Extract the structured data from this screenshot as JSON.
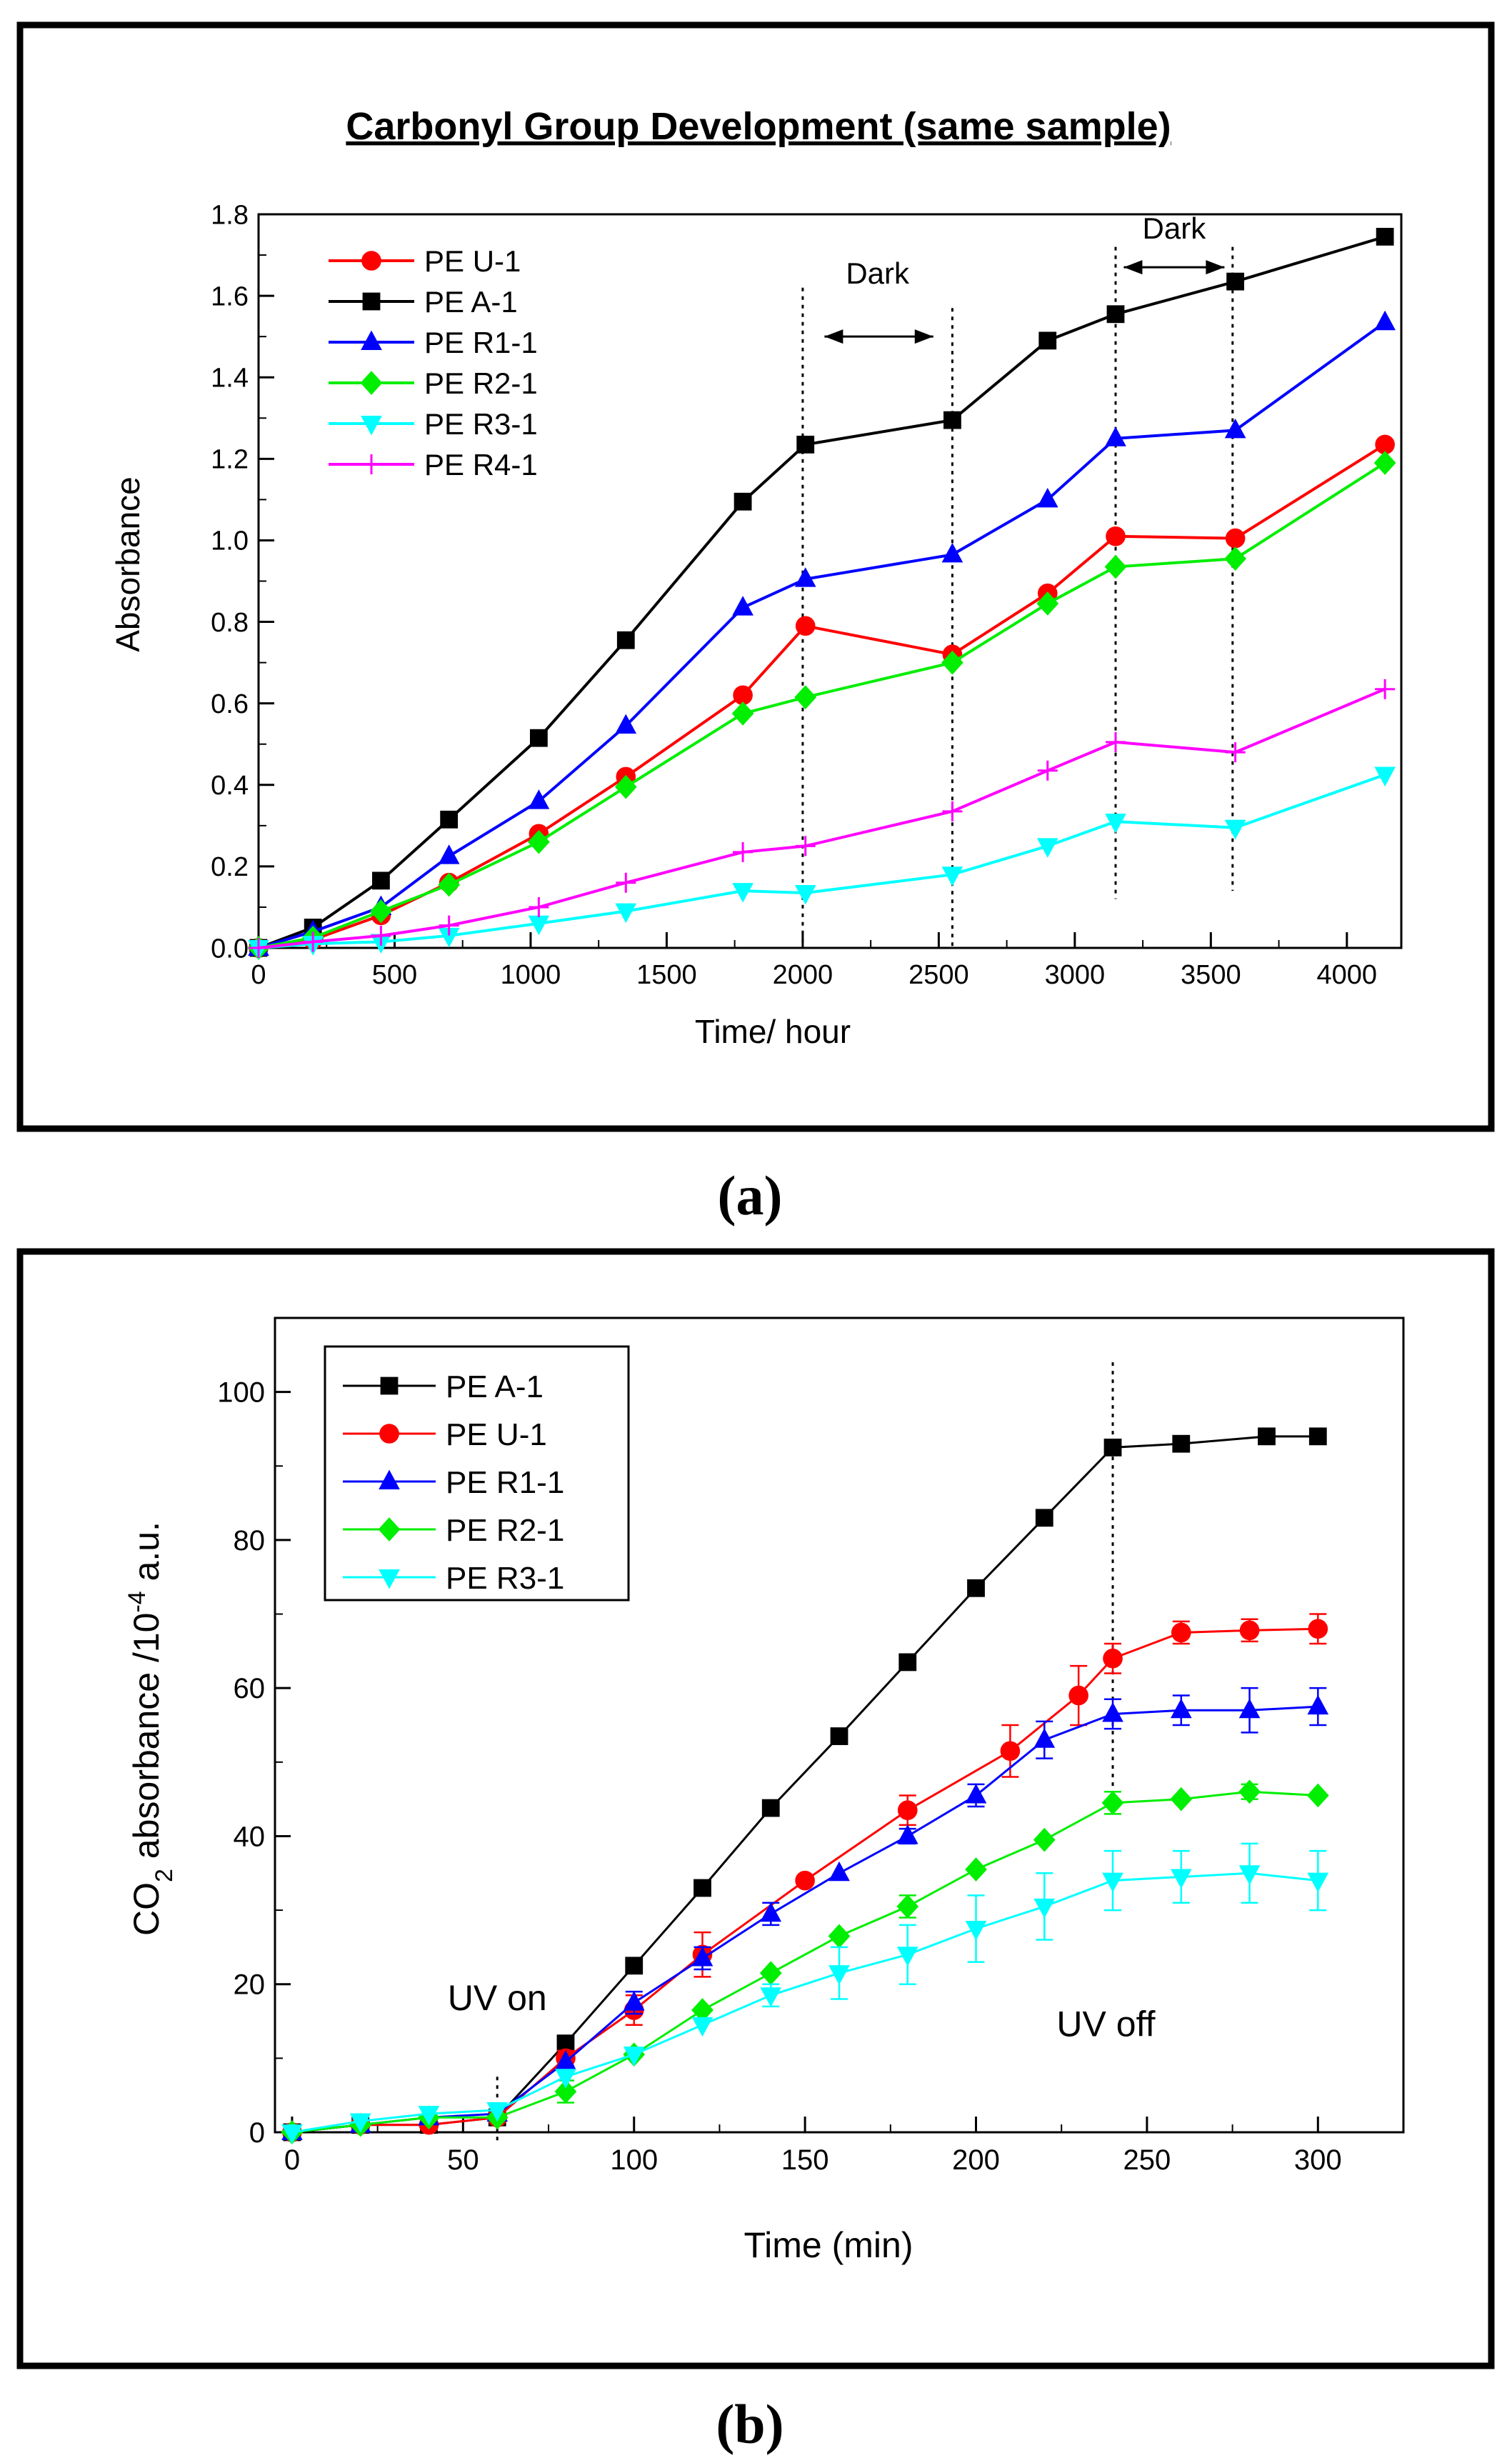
{
  "panel_labels": {
    "a": "(a)",
    "b": "(b)"
  },
  "chart_data": [
    {
      "type": "line",
      "id": "a",
      "title": "Carbonyl Group Development (same sample)",
      "xlabel": "Time/ hour",
      "ylabel": "Absorbance",
      "xlim": [
        0,
        4200
      ],
      "ylim": [
        0,
        1.8
      ],
      "xticks": [
        0,
        500,
        1000,
        1500,
        2000,
        2500,
        3000,
        3500,
        4000
      ],
      "yticks": [
        0.0,
        0.2,
        0.4,
        0.6,
        0.8,
        1.0,
        1.2,
        1.4,
        1.6,
        1.8
      ],
      "ytick_labels": [
        "0.0",
        "0.2",
        "0.4",
        "0.6",
        "0.8",
        "1.0",
        "1.2",
        "1.4",
        "1.6",
        "1.8"
      ],
      "x": [
        0,
        200,
        450,
        700,
        1030,
        1350,
        1780,
        2010,
        2550,
        2900,
        3150,
        3590,
        4140
      ],
      "legend_position": "top-left",
      "series": [
        {
          "name": "PE U-1",
          "color": "#ff0000",
          "marker": "circle",
          "values": [
            0,
            0.02,
            0.08,
            0.16,
            0.28,
            0.42,
            0.62,
            0.79,
            0.72,
            0.87,
            1.01,
            1.005,
            1.235
          ]
        },
        {
          "name": "PE A-1",
          "color": "#000000",
          "marker": "square",
          "values": [
            0,
            0.05,
            0.165,
            0.315,
            0.515,
            0.755,
            1.095,
            1.235,
            1.295,
            1.49,
            1.555,
            1.635,
            1.745
          ]
        },
        {
          "name": "PE R1-1",
          "color": "#0000ff",
          "marker": "triangle-up",
          "values": [
            0,
            0.04,
            0.1,
            0.225,
            0.36,
            0.545,
            0.835,
            0.905,
            0.965,
            1.1,
            1.25,
            1.27,
            1.535
          ]
        },
        {
          "name": "PE R2-1",
          "color": "#00ee00",
          "marker": "diamond",
          "values": [
            0,
            0.025,
            0.09,
            0.155,
            0.26,
            0.395,
            0.575,
            0.615,
            0.7,
            0.845,
            0.935,
            0.955,
            1.19
          ]
        },
        {
          "name": "PE R3-1",
          "color": "#00ffff",
          "marker": "triangle-down",
          "values": [
            0,
            0.01,
            0.015,
            0.03,
            0.06,
            0.09,
            0.14,
            0.135,
            0.18,
            0.25,
            0.31,
            0.295,
            0.425
          ]
        },
        {
          "name": "PE R4-1",
          "color": "#ff00ff",
          "marker": "plus",
          "values": [
            0,
            0.015,
            0.03,
            0.055,
            0.1,
            0.16,
            0.235,
            0.25,
            0.335,
            0.435,
            0.505,
            0.48,
            0.635
          ]
        }
      ],
      "reference_lines": [
        {
          "x": 2000,
          "y_top": 1.62,
          "y_bottom": 0
        },
        {
          "x": 2550,
          "y_top": 1.57,
          "y_bottom": 0
        },
        {
          "x": 3150,
          "y_top": 1.72,
          "y_bottom": 0.12
        },
        {
          "x": 3580,
          "y_top": 1.72,
          "y_bottom": 0.14
        }
      ],
      "annotations": [
        {
          "text": "Dark",
          "x": 2275,
          "y": 1.63,
          "arrow_from": 2080,
          "arrow_to": 2480,
          "arrow_y": 1.5
        },
        {
          "text": "Dark",
          "x": 3365,
          "y": 1.74,
          "arrow_from": 3180,
          "arrow_to": 3550,
          "arrow_y": 1.67
        }
      ]
    },
    {
      "type": "line",
      "id": "b",
      "title": "",
      "xlabel": "Time (min)",
      "ylabel_main": "CO",
      "ylabel_sub": "2",
      "ylabel_mid": " absorbance /10",
      "ylabel_sup": "-4",
      "ylabel_end": " a.u.",
      "xlim": [
        -5,
        325
      ],
      "ylim": [
        0,
        110
      ],
      "xticks": [
        0,
        50,
        100,
        150,
        200,
        250,
        300
      ],
      "yticks": [
        0,
        20,
        40,
        60,
        80,
        100
      ],
      "legend_position": "top-left",
      "series": [
        {
          "name": "PE A-1",
          "color": "#000000",
          "marker": "square",
          "x": [
            0,
            20,
            40,
            60,
            80,
            100,
            120,
            140,
            160,
            180,
            200,
            220,
            240,
            260,
            285,
            300
          ],
          "values": [
            0,
            1,
            1,
            2,
            12,
            22.5,
            33,
            43.8,
            53.5,
            63.5,
            73.5,
            83,
            92.5,
            93,
            94,
            94
          ],
          "errors": []
        },
        {
          "name": "PE U-1",
          "color": "#ff0000",
          "marker": "circle",
          "x": [
            0,
            20,
            40,
            60,
            80,
            100,
            120,
            150,
            180,
            210,
            230,
            240,
            260,
            280,
            300
          ],
          "values": [
            0,
            1,
            1,
            2,
            10,
            16.5,
            24,
            34,
            43.5,
            51.5,
            59,
            64,
            67.5,
            67.8,
            68
          ],
          "errors": [
            0,
            0,
            0,
            0,
            1,
            2,
            3,
            0,
            2,
            3.5,
            4,
            2,
            1.5,
            1.5,
            2
          ]
        },
        {
          "name": "PE R1-1",
          "color": "#0000ff",
          "marker": "triangle-up",
          "x": [
            0,
            20,
            40,
            60,
            80,
            100,
            120,
            140,
            160,
            180,
            200,
            220,
            240,
            260,
            280,
            300
          ],
          "values": [
            0,
            1,
            2,
            2.5,
            9.5,
            17.5,
            23.5,
            29.5,
            35,
            40,
            45.5,
            53,
            56.5,
            57,
            57,
            57.5
          ],
          "errors": [
            0,
            0,
            0,
            0,
            0,
            1.5,
            1.5,
            1.5,
            0,
            1,
            1.5,
            2.5,
            2,
            2,
            3,
            2.5
          ]
        },
        {
          "name": "PE R2-1",
          "color": "#00ee00",
          "marker": "diamond",
          "x": [
            0,
            20,
            40,
            60,
            80,
            100,
            120,
            140,
            160,
            180,
            200,
            220,
            240,
            260,
            280,
            300
          ],
          "values": [
            0,
            1,
            2,
            2,
            5.5,
            10.5,
            16.5,
            21.5,
            26.5,
            30.5,
            35.5,
            39.5,
            44.5,
            45,
            46,
            45.5
          ],
          "errors": [
            0,
            0,
            0,
            0,
            1.5,
            0,
            0,
            0,
            0,
            1.5,
            0,
            0,
            1.5,
            0,
            1,
            0
          ]
        },
        {
          "name": "PE R3-1",
          "color": "#00ffff",
          "marker": "triangle-down",
          "x": [
            0,
            20,
            40,
            60,
            80,
            100,
            120,
            140,
            160,
            180,
            200,
            220,
            240,
            260,
            280,
            300
          ],
          "values": [
            0,
            1.5,
            2.5,
            3,
            7.5,
            10.5,
            14.5,
            18.5,
            21.5,
            24,
            27.5,
            30.5,
            34,
            34.5,
            35,
            34
          ],
          "errors": [
            0,
            0,
            0,
            0,
            0,
            0,
            0,
            1.5,
            3.5,
            4,
            4.5,
            4.5,
            4,
            3.5,
            4,
            4
          ]
        }
      ],
      "reference_lines": [
        {
          "x": 60,
          "y_top": 7.5,
          "y_bottom": -1.5
        },
        {
          "x": 240,
          "y_top": 104,
          "y_bottom": 43
        }
      ],
      "annotations": [
        {
          "text": "UV on",
          "x": 60,
          "y": 16.5
        },
        {
          "text": "UV off",
          "x": 238,
          "y": 13
        }
      ]
    }
  ]
}
